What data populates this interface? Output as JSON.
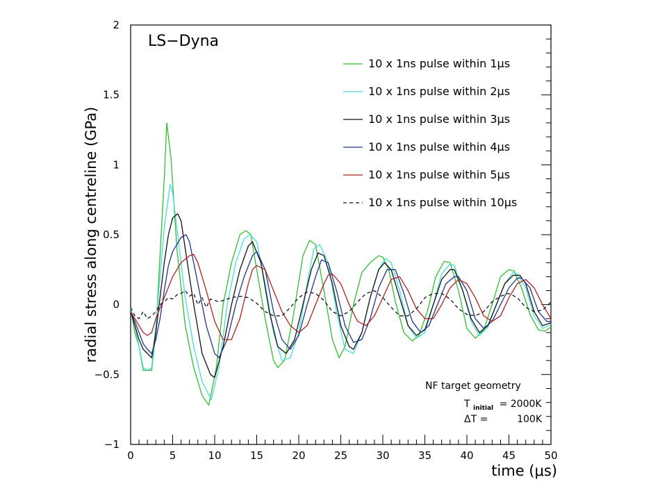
{
  "chart_data": {
    "type": "line",
    "title": "LS−Dyna",
    "xlabel": "time (μs)",
    "ylabel": "radial stress along centreline (GPa)",
    "xlim": [
      0,
      50
    ],
    "ylim": [
      -1,
      2
    ],
    "x_ticks": [
      "0",
      "5",
      "10",
      "15",
      "20",
      "25",
      "30",
      "35",
      "40",
      "45",
      "50"
    ],
    "y_ticks": [
      "−1",
      "−0.5",
      "0",
      "0.5",
      "1",
      "1.5",
      "2"
    ],
    "grid": false,
    "legend_position": "top-right",
    "series": [
      {
        "name": "10 x 1ns pulse within 1μs",
        "color": "#33bb33",
        "dash": "solid",
        "x": [
          0,
          0.5,
          1,
          1.5,
          2,
          2.5,
          3,
          3.5,
          4,
          4.3,
          4.8,
          5.5,
          6.5,
          7.5,
          8.5,
          9.3,
          10.2,
          11,
          12,
          13,
          13.7,
          14.3,
          15,
          16,
          17,
          17.5,
          18.3,
          19.3,
          20.5,
          21.3,
          22,
          23,
          24,
          24.8,
          25.5,
          26.5,
          27.5,
          28.5,
          29.5,
          30,
          30.7,
          31.5,
          32.5,
          33.5,
          34.3,
          35.3,
          36.3,
          37.3,
          38,
          39,
          40,
          41,
          42,
          43,
          44,
          45,
          45.6,
          46.5,
          47.5,
          48.5,
          49.3,
          50
        ],
        "y": [
          -0.02,
          -0.2,
          -0.3,
          -0.47,
          -0.47,
          -0.47,
          -0.2,
          0.35,
          0.9,
          1.3,
          1.05,
          0.4,
          -0.15,
          -0.45,
          -0.65,
          -0.72,
          -0.45,
          0.0,
          0.3,
          0.5,
          0.53,
          0.5,
          0.25,
          -0.1,
          -0.4,
          -0.45,
          -0.4,
          -0.1,
          0.35,
          0.46,
          0.43,
          0.1,
          -0.25,
          -0.38,
          -0.3,
          0.0,
          0.23,
          0.3,
          0.35,
          0.34,
          0.25,
          0.02,
          -0.2,
          -0.26,
          -0.22,
          -0.05,
          0.2,
          0.31,
          0.3,
          0.1,
          -0.17,
          -0.24,
          -0.18,
          0.0,
          0.2,
          0.25,
          0.24,
          0.12,
          -0.07,
          -0.18,
          -0.19,
          -0.16
        ]
      },
      {
        "name": "10 x 1ns pulse within 2μs",
        "color": "#44dddd",
        "dash": "solid",
        "x": [
          0,
          0.5,
          1,
          1.5,
          2,
          2.5,
          3,
          3.5,
          4,
          4.7,
          5,
          5.5,
          6.5,
          7.5,
          8.5,
          9.6,
          10.5,
          11.5,
          12.5,
          13.5,
          14.2,
          15,
          16,
          17,
          18,
          19,
          20,
          21,
          21.8,
          22.5,
          23.5,
          24.5,
          25.5,
          26.5,
          27.5,
          28.5,
          29.5,
          30.3,
          31,
          32,
          33,
          34,
          35,
          36,
          37,
          38,
          38.5,
          39.5,
          40.5,
          41.5,
          42.5,
          43.5,
          44.5,
          45.5,
          46,
          47,
          48,
          49,
          50
        ],
        "y": [
          -0.02,
          -0.15,
          -0.3,
          -0.45,
          -0.47,
          -0.45,
          -0.15,
          0.2,
          0.55,
          0.86,
          0.8,
          0.55,
          0.05,
          -0.3,
          -0.55,
          -0.68,
          -0.45,
          0.0,
          0.3,
          0.47,
          0.5,
          0.45,
          0.15,
          -0.2,
          -0.4,
          -0.38,
          -0.2,
          0.15,
          0.4,
          0.43,
          0.3,
          -0.05,
          -0.32,
          -0.35,
          -0.2,
          0.05,
          0.25,
          0.33,
          0.3,
          0.1,
          -0.15,
          -0.24,
          -0.2,
          0.0,
          0.22,
          0.29,
          0.28,
          0.1,
          -0.12,
          -0.22,
          -0.16,
          0.0,
          0.15,
          0.23,
          0.22,
          0.12,
          -0.08,
          -0.17,
          -0.14
        ]
      },
      {
        "name": "10 x 1ns pulse within 3μs",
        "color": "#111111",
        "dash": "solid",
        "x": [
          0,
          0.5,
          1,
          1.5,
          2,
          2.5,
          3,
          3.5,
          4,
          4.5,
          5,
          5.6,
          6,
          6.5,
          7.5,
          8.5,
          9.5,
          10,
          11,
          12,
          13,
          14,
          14.5,
          15.5,
          16.5,
          17.5,
          18.5,
          19.5,
          20.5,
          21.5,
          22.3,
          23,
          24,
          25,
          26,
          26.5,
          27.5,
          28.5,
          29.5,
          30.2,
          31,
          32,
          33,
          34,
          35,
          36,
          37,
          38,
          38.5,
          39.5,
          40.5,
          41.5,
          42.5,
          43.5,
          44.5,
          45.5,
          46.3,
          47,
          48,
          49,
          50
        ],
        "y": [
          -0.05,
          -0.15,
          -0.25,
          -0.32,
          -0.35,
          -0.38,
          -0.2,
          0.05,
          0.3,
          0.5,
          0.62,
          0.65,
          0.6,
          0.4,
          0.0,
          -0.35,
          -0.5,
          -0.52,
          -0.3,
          0.0,
          0.25,
          0.42,
          0.45,
          0.3,
          -0.05,
          -0.3,
          -0.35,
          -0.25,
          0.0,
          0.25,
          0.37,
          0.35,
          0.15,
          -0.15,
          -0.3,
          -0.32,
          -0.2,
          0.05,
          0.25,
          0.3,
          0.25,
          0.05,
          -0.15,
          -0.22,
          -0.18,
          0.0,
          0.18,
          0.25,
          0.25,
          0.1,
          -0.1,
          -0.2,
          -0.15,
          0.0,
          0.15,
          0.21,
          0.21,
          0.15,
          -0.05,
          -0.15,
          -0.13
        ]
      },
      {
        "name": "10 x 1ns pulse within 4μs",
        "color": "#223388",
        "dash": "solid",
        "x": [
          0,
          0.5,
          1,
          1.5,
          2,
          2.5,
          3,
          3.5,
          4,
          4.5,
          5,
          6,
          6.6,
          7,
          8,
          9,
          10,
          10.5,
          11.5,
          12.5,
          13.5,
          14.5,
          15,
          16,
          17,
          18,
          19,
          20,
          21,
          22,
          22.7,
          23.5,
          24.5,
          25.5,
          26.5,
          27.5,
          28.5,
          29.5,
          30.5,
          31.5,
          32.5,
          33.5,
          34.5,
          35.5,
          36.5,
          37.5,
          38.5,
          39,
          40,
          41,
          42,
          43,
          44,
          45,
          46,
          46.5,
          47.5,
          48.5,
          49.5,
          50
        ],
        "y": [
          -0.05,
          -0.12,
          -0.2,
          -0.28,
          -0.32,
          -0.35,
          -0.25,
          -0.1,
          0.1,
          0.28,
          0.38,
          0.48,
          0.5,
          0.45,
          0.15,
          -0.15,
          -0.35,
          -0.38,
          -0.25,
          0.0,
          0.2,
          0.35,
          0.38,
          0.25,
          -0.05,
          -0.25,
          -0.32,
          -0.22,
          0.0,
          0.2,
          0.32,
          0.3,
          0.1,
          -0.15,
          -0.27,
          -0.25,
          -0.1,
          0.12,
          0.25,
          0.25,
          0.08,
          -0.12,
          -0.2,
          -0.15,
          0.0,
          0.15,
          0.2,
          0.2,
          0.1,
          -0.1,
          -0.17,
          -0.12,
          0.0,
          0.12,
          0.19,
          0.19,
          0.12,
          -0.05,
          -0.12,
          -0.12
        ]
      },
      {
        "name": "10 x 1ns pulse within 5μs",
        "color": "#aa2222",
        "dash": "solid",
        "x": [
          0,
          0.5,
          1,
          1.5,
          2,
          2.5,
          3,
          4,
          5,
          6,
          7,
          7.5,
          8,
          9,
          10,
          11,
          12,
          13,
          14,
          14.5,
          15,
          16,
          17,
          18,
          19,
          20,
          21,
          22,
          23,
          23.5,
          24,
          25,
          26,
          27,
          28,
          29,
          30,
          31,
          32,
          33,
          34,
          35,
          36,
          37,
          38,
          39,
          40,
          41,
          42,
          43,
          44,
          45,
          46,
          47,
          48,
          49,
          50
        ],
        "y": [
          -0.05,
          -0.1,
          -0.15,
          -0.2,
          -0.22,
          -0.2,
          -0.1,
          0.05,
          0.2,
          0.3,
          0.35,
          0.36,
          0.3,
          0.1,
          -0.12,
          -0.25,
          -0.25,
          -0.1,
          0.15,
          0.25,
          0.28,
          0.25,
          0.1,
          -0.05,
          -0.15,
          -0.2,
          -0.15,
          0.0,
          0.15,
          0.21,
          0.22,
          0.15,
          0.0,
          -0.12,
          -0.15,
          -0.08,
          0.05,
          0.18,
          0.2,
          0.1,
          -0.03,
          -0.1,
          -0.1,
          0.0,
          0.12,
          0.18,
          0.15,
          0.05,
          -0.08,
          -0.12,
          -0.08,
          0.05,
          0.15,
          0.18,
          0.12,
          0.0,
          -0.1
        ]
      },
      {
        "name": "10 x 1ns pulse within 10μs",
        "color": "#111111",
        "dash": "dashed",
        "x": [
          0,
          0.5,
          1,
          1.5,
          2,
          2.5,
          3,
          3.5,
          4,
          4.5,
          5,
          5.5,
          6,
          6.5,
          7,
          7.5,
          8,
          8.5,
          9,
          9.5,
          10,
          10.5,
          11,
          12,
          13,
          14,
          15,
          16,
          17,
          18,
          19,
          20,
          21,
          22,
          23,
          24,
          25,
          26,
          27,
          28,
          29,
          30,
          31,
          32,
          33,
          34,
          35,
          36,
          37,
          38,
          39,
          40,
          41,
          42,
          43,
          44,
          45,
          46,
          47,
          48,
          49,
          50
        ],
        "y": [
          -0.02,
          -0.08,
          -0.1,
          -0.05,
          -0.1,
          -0.08,
          -0.05,
          0.0,
          0.02,
          0.05,
          0.04,
          0.07,
          0.08,
          0.1,
          0.06,
          0.08,
          0.0,
          0.05,
          -0.02,
          0.04,
          0.03,
          0.02,
          0.03,
          0.05,
          0.06,
          0.05,
          0.01,
          -0.05,
          -0.08,
          -0.08,
          -0.02,
          0.05,
          0.09,
          0.08,
          0.03,
          -0.05,
          -0.08,
          -0.05,
          0.02,
          0.08,
          0.1,
          0.05,
          -0.02,
          -0.08,
          -0.08,
          -0.03,
          0.05,
          0.08,
          0.08,
          0.04,
          -0.03,
          -0.07,
          -0.08,
          -0.05,
          0.02,
          0.06,
          0.08,
          0.05,
          -0.02,
          -0.05,
          -0.04,
          0.02
        ]
      }
    ],
    "annotations": {
      "geometry": "NF target geometry",
      "tinit_symbol": "T",
      "tinit_sub": "initial",
      "tinit_value": "= 2000K",
      "deltaT_label": "ΔT =",
      "deltaT_value": "100K"
    }
  }
}
